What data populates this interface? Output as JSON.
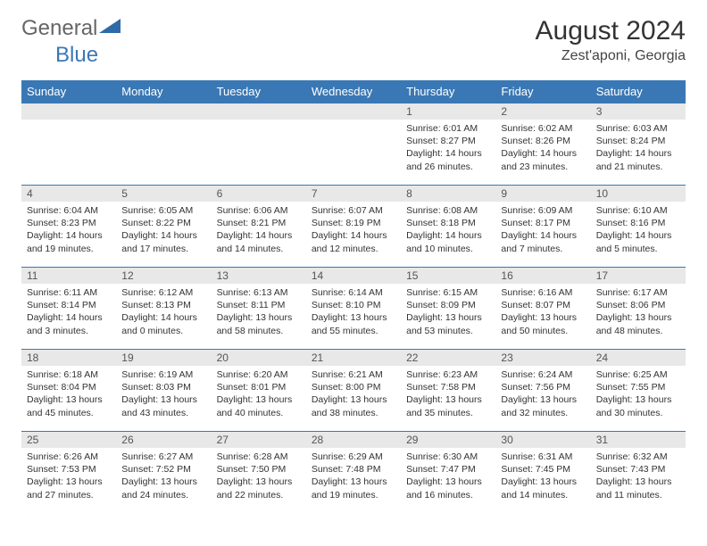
{
  "logo": {
    "general": "General",
    "blue": "Blue"
  },
  "title": "August 2024",
  "location": "Zest'aponi, Georgia",
  "colors": {
    "header_bg": "#3a78b5",
    "header_fg": "#ffffff",
    "daynum_bg": "#e8e8e8",
    "border": "#3a78b5",
    "text": "#333333"
  },
  "day_headers": [
    "Sunday",
    "Monday",
    "Tuesday",
    "Wednesday",
    "Thursday",
    "Friday",
    "Saturday"
  ],
  "weeks": [
    [
      {
        "n": "",
        "sunrise": "",
        "sunset": "",
        "daylight": ""
      },
      {
        "n": "",
        "sunrise": "",
        "sunset": "",
        "daylight": ""
      },
      {
        "n": "",
        "sunrise": "",
        "sunset": "",
        "daylight": ""
      },
      {
        "n": "",
        "sunrise": "",
        "sunset": "",
        "daylight": ""
      },
      {
        "n": "1",
        "sunrise": "Sunrise: 6:01 AM",
        "sunset": "Sunset: 8:27 PM",
        "daylight": "Daylight: 14 hours and 26 minutes."
      },
      {
        "n": "2",
        "sunrise": "Sunrise: 6:02 AM",
        "sunset": "Sunset: 8:26 PM",
        "daylight": "Daylight: 14 hours and 23 minutes."
      },
      {
        "n": "3",
        "sunrise": "Sunrise: 6:03 AM",
        "sunset": "Sunset: 8:24 PM",
        "daylight": "Daylight: 14 hours and 21 minutes."
      }
    ],
    [
      {
        "n": "4",
        "sunrise": "Sunrise: 6:04 AM",
        "sunset": "Sunset: 8:23 PM",
        "daylight": "Daylight: 14 hours and 19 minutes."
      },
      {
        "n": "5",
        "sunrise": "Sunrise: 6:05 AM",
        "sunset": "Sunset: 8:22 PM",
        "daylight": "Daylight: 14 hours and 17 minutes."
      },
      {
        "n": "6",
        "sunrise": "Sunrise: 6:06 AM",
        "sunset": "Sunset: 8:21 PM",
        "daylight": "Daylight: 14 hours and 14 minutes."
      },
      {
        "n": "7",
        "sunrise": "Sunrise: 6:07 AM",
        "sunset": "Sunset: 8:19 PM",
        "daylight": "Daylight: 14 hours and 12 minutes."
      },
      {
        "n": "8",
        "sunrise": "Sunrise: 6:08 AM",
        "sunset": "Sunset: 8:18 PM",
        "daylight": "Daylight: 14 hours and 10 minutes."
      },
      {
        "n": "9",
        "sunrise": "Sunrise: 6:09 AM",
        "sunset": "Sunset: 8:17 PM",
        "daylight": "Daylight: 14 hours and 7 minutes."
      },
      {
        "n": "10",
        "sunrise": "Sunrise: 6:10 AM",
        "sunset": "Sunset: 8:16 PM",
        "daylight": "Daylight: 14 hours and 5 minutes."
      }
    ],
    [
      {
        "n": "11",
        "sunrise": "Sunrise: 6:11 AM",
        "sunset": "Sunset: 8:14 PM",
        "daylight": "Daylight: 14 hours and 3 minutes."
      },
      {
        "n": "12",
        "sunrise": "Sunrise: 6:12 AM",
        "sunset": "Sunset: 8:13 PM",
        "daylight": "Daylight: 14 hours and 0 minutes."
      },
      {
        "n": "13",
        "sunrise": "Sunrise: 6:13 AM",
        "sunset": "Sunset: 8:11 PM",
        "daylight": "Daylight: 13 hours and 58 minutes."
      },
      {
        "n": "14",
        "sunrise": "Sunrise: 6:14 AM",
        "sunset": "Sunset: 8:10 PM",
        "daylight": "Daylight: 13 hours and 55 minutes."
      },
      {
        "n": "15",
        "sunrise": "Sunrise: 6:15 AM",
        "sunset": "Sunset: 8:09 PM",
        "daylight": "Daylight: 13 hours and 53 minutes."
      },
      {
        "n": "16",
        "sunrise": "Sunrise: 6:16 AM",
        "sunset": "Sunset: 8:07 PM",
        "daylight": "Daylight: 13 hours and 50 minutes."
      },
      {
        "n": "17",
        "sunrise": "Sunrise: 6:17 AM",
        "sunset": "Sunset: 8:06 PM",
        "daylight": "Daylight: 13 hours and 48 minutes."
      }
    ],
    [
      {
        "n": "18",
        "sunrise": "Sunrise: 6:18 AM",
        "sunset": "Sunset: 8:04 PM",
        "daylight": "Daylight: 13 hours and 45 minutes."
      },
      {
        "n": "19",
        "sunrise": "Sunrise: 6:19 AM",
        "sunset": "Sunset: 8:03 PM",
        "daylight": "Daylight: 13 hours and 43 minutes."
      },
      {
        "n": "20",
        "sunrise": "Sunrise: 6:20 AM",
        "sunset": "Sunset: 8:01 PM",
        "daylight": "Daylight: 13 hours and 40 minutes."
      },
      {
        "n": "21",
        "sunrise": "Sunrise: 6:21 AM",
        "sunset": "Sunset: 8:00 PM",
        "daylight": "Daylight: 13 hours and 38 minutes."
      },
      {
        "n": "22",
        "sunrise": "Sunrise: 6:23 AM",
        "sunset": "Sunset: 7:58 PM",
        "daylight": "Daylight: 13 hours and 35 minutes."
      },
      {
        "n": "23",
        "sunrise": "Sunrise: 6:24 AM",
        "sunset": "Sunset: 7:56 PM",
        "daylight": "Daylight: 13 hours and 32 minutes."
      },
      {
        "n": "24",
        "sunrise": "Sunrise: 6:25 AM",
        "sunset": "Sunset: 7:55 PM",
        "daylight": "Daylight: 13 hours and 30 minutes."
      }
    ],
    [
      {
        "n": "25",
        "sunrise": "Sunrise: 6:26 AM",
        "sunset": "Sunset: 7:53 PM",
        "daylight": "Daylight: 13 hours and 27 minutes."
      },
      {
        "n": "26",
        "sunrise": "Sunrise: 6:27 AM",
        "sunset": "Sunset: 7:52 PM",
        "daylight": "Daylight: 13 hours and 24 minutes."
      },
      {
        "n": "27",
        "sunrise": "Sunrise: 6:28 AM",
        "sunset": "Sunset: 7:50 PM",
        "daylight": "Daylight: 13 hours and 22 minutes."
      },
      {
        "n": "28",
        "sunrise": "Sunrise: 6:29 AM",
        "sunset": "Sunset: 7:48 PM",
        "daylight": "Daylight: 13 hours and 19 minutes."
      },
      {
        "n": "29",
        "sunrise": "Sunrise: 6:30 AM",
        "sunset": "Sunset: 7:47 PM",
        "daylight": "Daylight: 13 hours and 16 minutes."
      },
      {
        "n": "30",
        "sunrise": "Sunrise: 6:31 AM",
        "sunset": "Sunset: 7:45 PM",
        "daylight": "Daylight: 13 hours and 14 minutes."
      },
      {
        "n": "31",
        "sunrise": "Sunrise: 6:32 AM",
        "sunset": "Sunset: 7:43 PM",
        "daylight": "Daylight: 13 hours and 11 minutes."
      }
    ]
  ]
}
